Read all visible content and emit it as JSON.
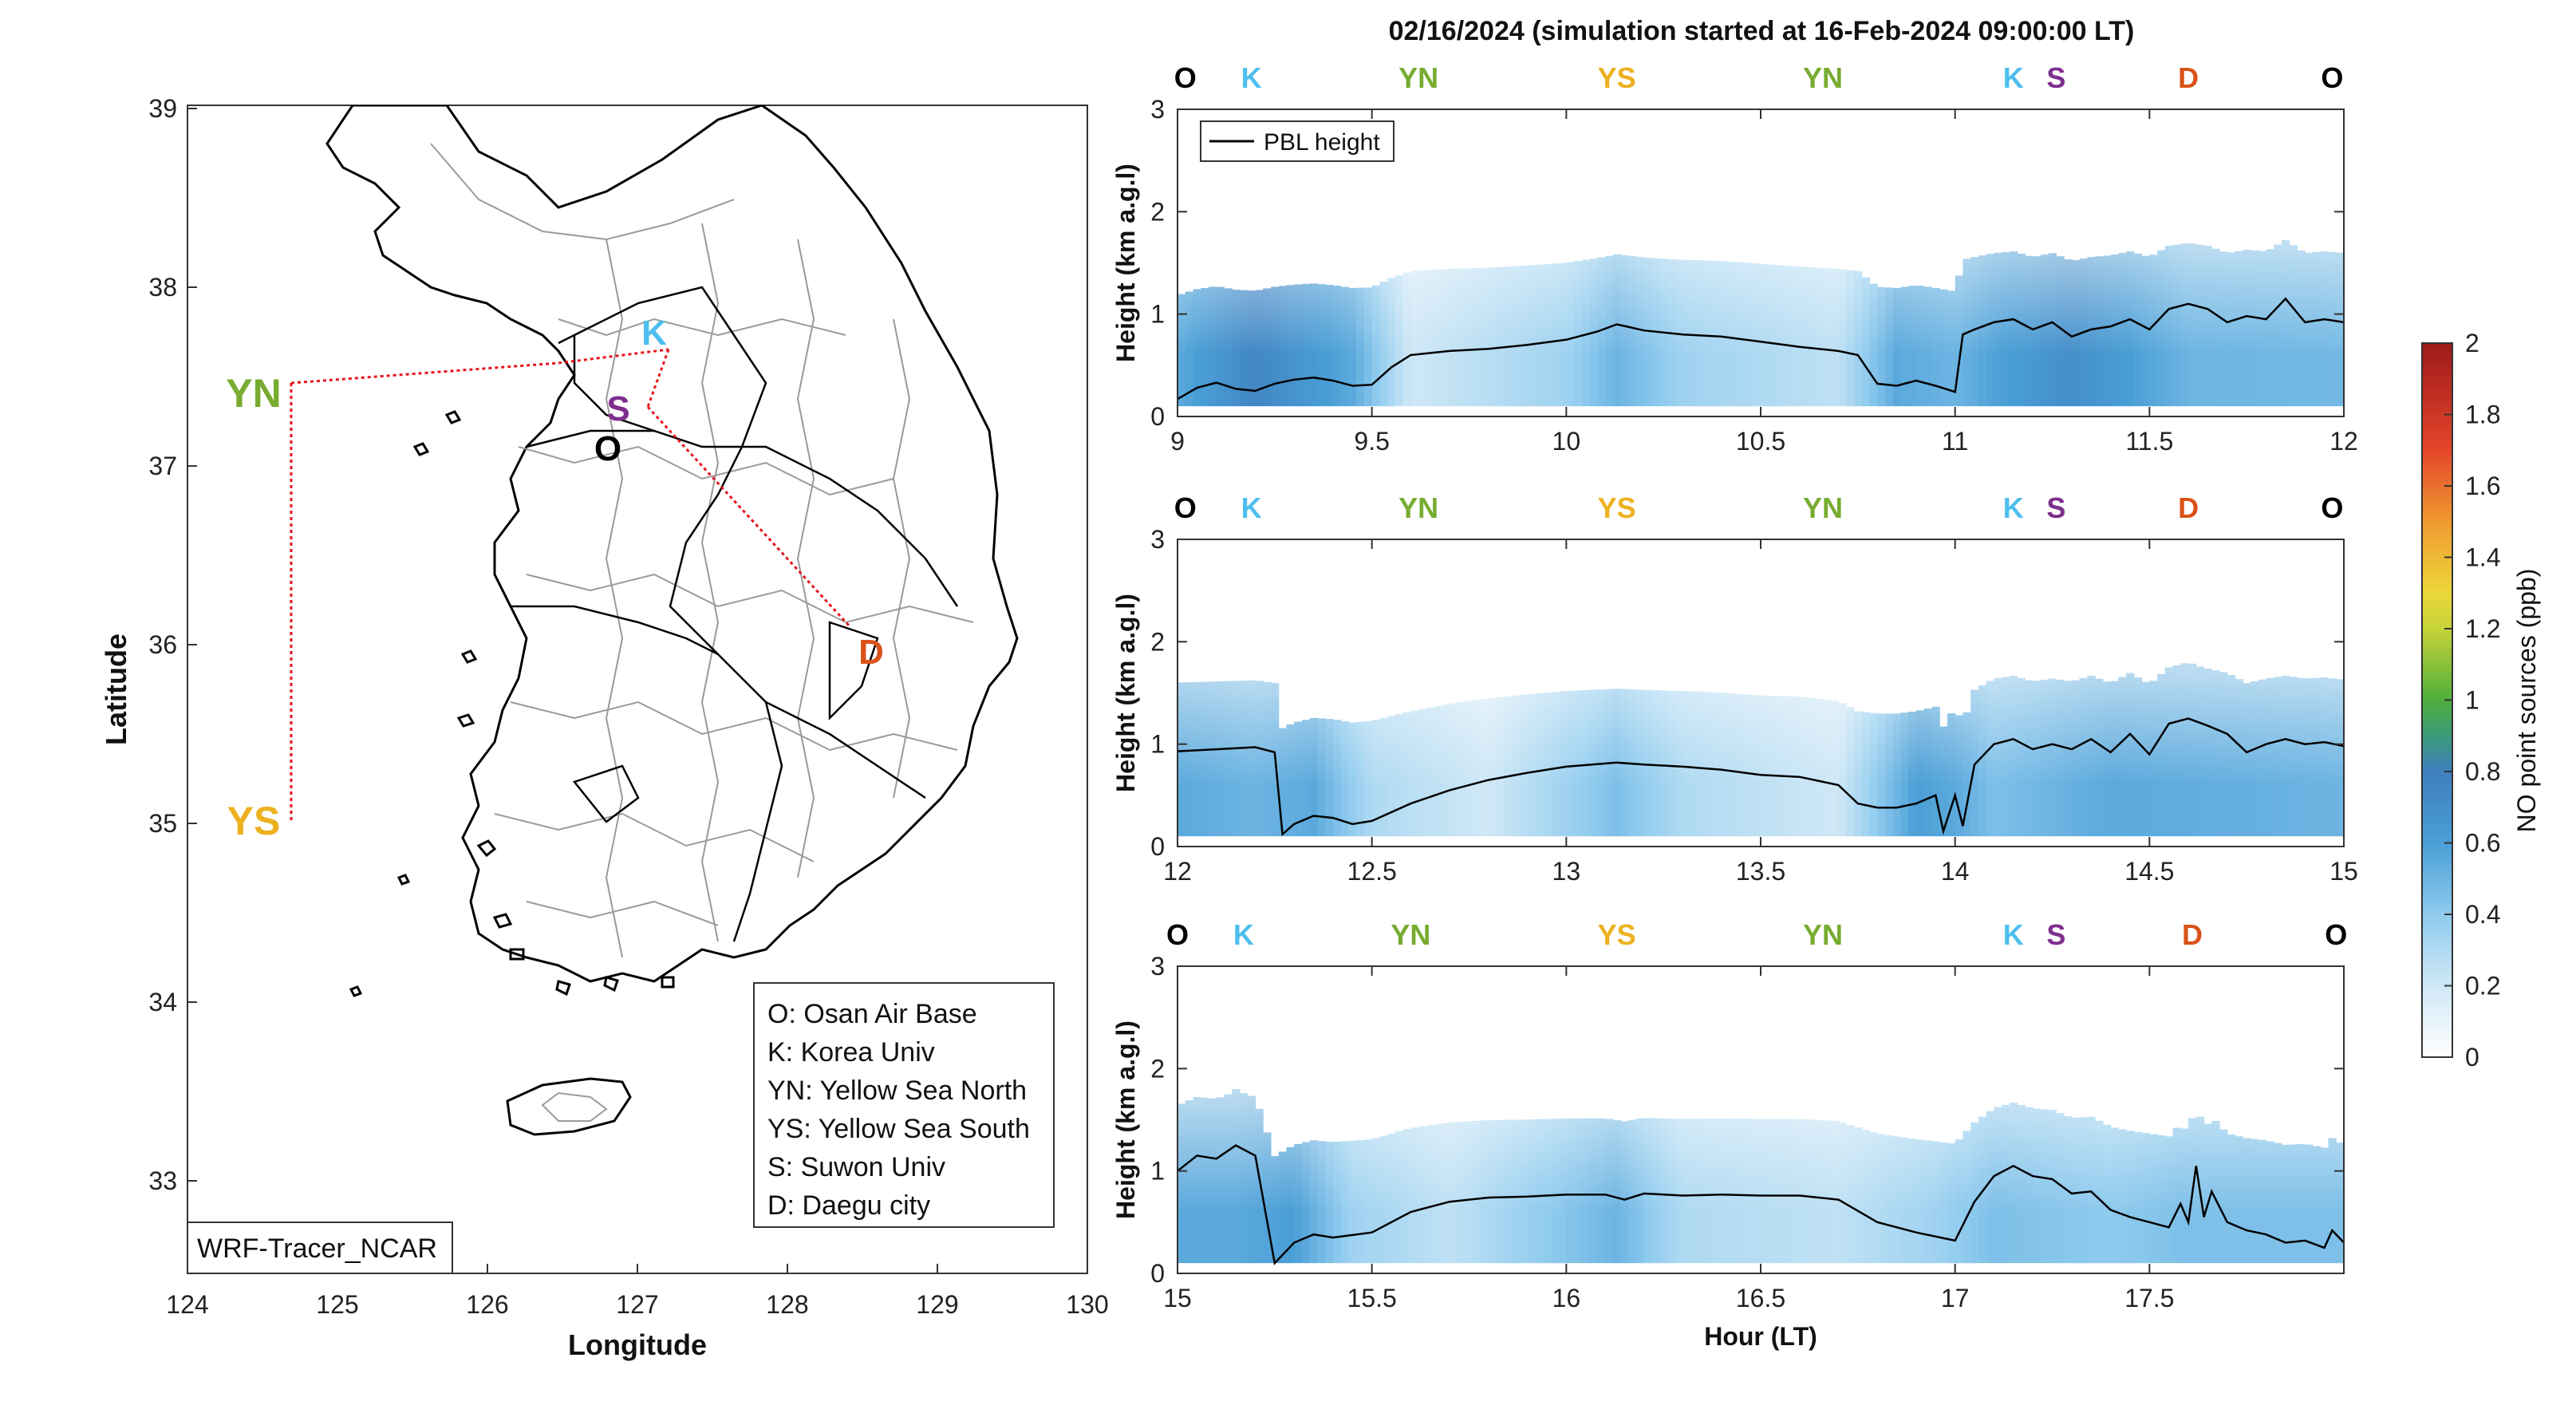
{
  "figure": {
    "title": "02/16/2024 (simulation started at 16-Feb-2024 09:00:00 LT)"
  },
  "map": {
    "xlabel": "Longitude",
    "ylabel": "Latitude",
    "xticks": [
      "124",
      "125",
      "126",
      "127",
      "128",
      "129",
      "130"
    ],
    "yticks": [
      "39",
      "38",
      "37",
      "36",
      "35",
      "34",
      "33"
    ],
    "watermark": "WRF-Tracer_NCAR",
    "sites": [
      {
        "code": "YN",
        "color": "#77AC30"
      },
      {
        "code": "YS",
        "color": "#EDB120"
      },
      {
        "code": "K",
        "color": "#4DBEEE"
      },
      {
        "code": "S",
        "color": "#7E2F8E"
      },
      {
        "code": "O",
        "color": "#000000"
      },
      {
        "code": "D",
        "color": "#D95319"
      }
    ],
    "legend": [
      "O: Osan Air Base",
      "K: Korea Univ",
      "YN: Yellow Sea North",
      "YS: Yellow Sea South",
      "S: Suwon Univ",
      "D: Daegu city"
    ]
  },
  "colorbar": {
    "label": "NO point sources (ppb)",
    "ticks": [
      "2",
      "1.8",
      "1.6",
      "1.4",
      "1.2",
      "1",
      "0.8",
      "0.6",
      "0.4",
      "0.2",
      "0"
    ]
  },
  "route_colors": {
    "O": "#000000",
    "K": "#4DBEEE",
    "YN": "#77AC30",
    "YS": "#EDB120",
    "S": "#7E2F8E",
    "D": "#D95319"
  },
  "chart_data": {
    "type": "heatmap",
    "variable": "NO point sources (ppb)",
    "clim": [
      0,
      2
    ],
    "ylabel": "Height (km a.g.l)",
    "xlabel": "Hour (LT)",
    "legend": "PBL height",
    "panels": [
      {
        "xlim": [
          9,
          12
        ],
        "ylim": [
          0,
          3
        ],
        "xticks": [
          "9",
          "9.5",
          "10",
          "10.5",
          "11",
          "11.5",
          "12"
        ],
        "yticks": [
          "3",
          "2",
          "1",
          "0"
        ],
        "route": [
          {
            "label": "O",
            "x": 9.02
          },
          {
            "label": "K",
            "x": 9.19
          },
          {
            "label": "YN",
            "x": 9.62
          },
          {
            "label": "YS",
            "x": 10.13
          },
          {
            "label": "YN",
            "x": 10.66
          },
          {
            "label": "K",
            "x": 11.15
          },
          {
            "label": "S",
            "x": 11.26
          },
          {
            "label": "D",
            "x": 11.6
          },
          {
            "label": "O",
            "x": 11.97
          }
        ],
        "pbl": [
          [
            9.0,
            0.17
          ],
          [
            9.05,
            0.28
          ],
          [
            9.1,
            0.33
          ],
          [
            9.15,
            0.27
          ],
          [
            9.2,
            0.25
          ],
          [
            9.25,
            0.32
          ],
          [
            9.3,
            0.36
          ],
          [
            9.35,
            0.38
          ],
          [
            9.4,
            0.35
          ],
          [
            9.45,
            0.3
          ],
          [
            9.5,
            0.31
          ],
          [
            9.55,
            0.48
          ],
          [
            9.6,
            0.6
          ],
          [
            9.7,
            0.64
          ],
          [
            9.8,
            0.66
          ],
          [
            9.9,
            0.7
          ],
          [
            10.0,
            0.75
          ],
          [
            10.08,
            0.83
          ],
          [
            10.13,
            0.9
          ],
          [
            10.2,
            0.84
          ],
          [
            10.3,
            0.8
          ],
          [
            10.4,
            0.78
          ],
          [
            10.5,
            0.73
          ],
          [
            10.6,
            0.68
          ],
          [
            10.7,
            0.64
          ],
          [
            10.75,
            0.6
          ],
          [
            10.8,
            0.32
          ],
          [
            10.85,
            0.3
          ],
          [
            10.9,
            0.35
          ],
          [
            10.95,
            0.3
          ],
          [
            11.0,
            0.24
          ],
          [
            11.02,
            0.8
          ],
          [
            11.05,
            0.85
          ],
          [
            11.1,
            0.92
          ],
          [
            11.15,
            0.95
          ],
          [
            11.2,
            0.85
          ],
          [
            11.25,
            0.92
          ],
          [
            11.3,
            0.78
          ],
          [
            11.35,
            0.85
          ],
          [
            11.4,
            0.88
          ],
          [
            11.45,
            0.95
          ],
          [
            11.5,
            0.85
          ],
          [
            11.55,
            1.05
          ],
          [
            11.6,
            1.1
          ],
          [
            11.65,
            1.05
          ],
          [
            11.7,
            0.92
          ],
          [
            11.75,
            0.98
          ],
          [
            11.8,
            0.95
          ],
          [
            11.85,
            1.15
          ],
          [
            11.9,
            0.92
          ],
          [
            11.95,
            0.95
          ],
          [
            12.0,
            0.92
          ]
        ],
        "no_levels": [
          [
            9.0,
            0.55
          ],
          [
            9.2,
            0.75
          ],
          [
            9.45,
            0.55
          ],
          [
            9.6,
            0.2
          ],
          [
            10.0,
            0.35
          ],
          [
            10.13,
            0.5
          ],
          [
            10.3,
            0.35
          ],
          [
            10.7,
            0.25
          ],
          [
            10.85,
            0.55
          ],
          [
            11.0,
            0.5
          ],
          [
            11.1,
            0.58
          ],
          [
            11.3,
            0.7
          ],
          [
            11.6,
            0.5
          ],
          [
            12.0,
            0.48
          ]
        ]
      },
      {
        "xlim": [
          12,
          15
        ],
        "ylim": [
          0,
          3
        ],
        "xticks": [
          "12",
          "12.5",
          "13",
          "13.5",
          "14",
          "14.5",
          "15"
        ],
        "yticks": [
          "3",
          "2",
          "1",
          "0"
        ],
        "route": [
          {
            "label": "O",
            "x": 12.02
          },
          {
            "label": "K",
            "x": 12.19
          },
          {
            "label": "YN",
            "x": 12.62
          },
          {
            "label": "YS",
            "x": 13.13
          },
          {
            "label": "YN",
            "x": 13.66
          },
          {
            "label": "K",
            "x": 14.15
          },
          {
            "label": "S",
            "x": 14.26
          },
          {
            "label": "D",
            "x": 14.6
          },
          {
            "label": "O",
            "x": 14.97
          }
        ],
        "pbl": [
          [
            12.0,
            0.93
          ],
          [
            12.1,
            0.95
          ],
          [
            12.2,
            0.97
          ],
          [
            12.25,
            0.92
          ],
          [
            12.27,
            0.12
          ],
          [
            12.3,
            0.22
          ],
          [
            12.35,
            0.3
          ],
          [
            12.4,
            0.28
          ],
          [
            12.45,
            0.22
          ],
          [
            12.5,
            0.25
          ],
          [
            12.6,
            0.42
          ],
          [
            12.7,
            0.55
          ],
          [
            12.8,
            0.65
          ],
          [
            12.9,
            0.72
          ],
          [
            13.0,
            0.78
          ],
          [
            13.13,
            0.82
          ],
          [
            13.2,
            0.8
          ],
          [
            13.3,
            0.78
          ],
          [
            13.4,
            0.75
          ],
          [
            13.5,
            0.7
          ],
          [
            13.6,
            0.68
          ],
          [
            13.7,
            0.6
          ],
          [
            13.75,
            0.42
          ],
          [
            13.8,
            0.38
          ],
          [
            13.85,
            0.38
          ],
          [
            13.9,
            0.42
          ],
          [
            13.95,
            0.5
          ],
          [
            13.97,
            0.15
          ],
          [
            14.0,
            0.5
          ],
          [
            14.02,
            0.2
          ],
          [
            14.05,
            0.8
          ],
          [
            14.1,
            1.0
          ],
          [
            14.15,
            1.05
          ],
          [
            14.2,
            0.95
          ],
          [
            14.25,
            1.0
          ],
          [
            14.3,
            0.95
          ],
          [
            14.35,
            1.05
          ],
          [
            14.4,
            0.92
          ],
          [
            14.45,
            1.1
          ],
          [
            14.5,
            0.9
          ],
          [
            14.55,
            1.2
          ],
          [
            14.6,
            1.25
          ],
          [
            14.65,
            1.18
          ],
          [
            14.7,
            1.1
          ],
          [
            14.75,
            0.92
          ],
          [
            14.8,
            1.0
          ],
          [
            14.85,
            1.05
          ],
          [
            14.9,
            1.0
          ],
          [
            14.95,
            1.02
          ],
          [
            15.0,
            0.98
          ]
        ],
        "no_levels": [
          [
            12.0,
            0.55
          ],
          [
            12.2,
            0.5
          ],
          [
            12.35,
            0.55
          ],
          [
            12.5,
            0.3
          ],
          [
            12.8,
            0.2
          ],
          [
            13.13,
            0.45
          ],
          [
            13.3,
            0.3
          ],
          [
            13.7,
            0.2
          ],
          [
            13.9,
            0.6
          ],
          [
            14.0,
            0.55
          ],
          [
            14.1,
            0.45
          ],
          [
            14.4,
            0.55
          ],
          [
            15.0,
            0.5
          ]
        ]
      },
      {
        "xlim": [
          15,
          18
        ],
        "ylim": [
          0,
          3
        ],
        "xticks": [
          "15",
          "15.5",
          "16",
          "16.5",
          "17",
          "17.5"
        ],
        "yticks": [
          "3",
          "2",
          "1",
          "0"
        ],
        "route": [
          {
            "label": "O",
            "x": 15.0
          },
          {
            "label": "K",
            "x": 15.17
          },
          {
            "label": "YN",
            "x": 15.6
          },
          {
            "label": "YS",
            "x": 16.13
          },
          {
            "label": "YN",
            "x": 16.66
          },
          {
            "label": "K",
            "x": 17.15
          },
          {
            "label": "S",
            "x": 17.26
          },
          {
            "label": "D",
            "x": 17.61
          },
          {
            "label": "O",
            "x": 17.98
          }
        ],
        "pbl": [
          [
            15.0,
            1.0
          ],
          [
            15.05,
            1.15
          ],
          [
            15.1,
            1.12
          ],
          [
            15.15,
            1.25
          ],
          [
            15.2,
            1.15
          ],
          [
            15.25,
            0.1
          ],
          [
            15.3,
            0.3
          ],
          [
            15.35,
            0.38
          ],
          [
            15.4,
            0.35
          ],
          [
            15.5,
            0.4
          ],
          [
            15.6,
            0.6
          ],
          [
            15.7,
            0.7
          ],
          [
            15.8,
            0.74
          ],
          [
            15.9,
            0.75
          ],
          [
            16.0,
            0.77
          ],
          [
            16.1,
            0.77
          ],
          [
            16.15,
            0.72
          ],
          [
            16.2,
            0.78
          ],
          [
            16.3,
            0.76
          ],
          [
            16.4,
            0.77
          ],
          [
            16.5,
            0.76
          ],
          [
            16.6,
            0.76
          ],
          [
            16.7,
            0.72
          ],
          [
            16.8,
            0.5
          ],
          [
            16.9,
            0.4
          ],
          [
            17.0,
            0.32
          ],
          [
            17.05,
            0.7
          ],
          [
            17.1,
            0.95
          ],
          [
            17.15,
            1.05
          ],
          [
            17.2,
            0.95
          ],
          [
            17.25,
            0.92
          ],
          [
            17.3,
            0.78
          ],
          [
            17.35,
            0.8
          ],
          [
            17.4,
            0.62
          ],
          [
            17.45,
            0.55
          ],
          [
            17.5,
            0.5
          ],
          [
            17.55,
            0.45
          ],
          [
            17.58,
            0.68
          ],
          [
            17.6,
            0.5
          ],
          [
            17.62,
            1.05
          ],
          [
            17.64,
            0.55
          ],
          [
            17.66,
            0.8
          ],
          [
            17.7,
            0.5
          ],
          [
            17.75,
            0.42
          ],
          [
            17.8,
            0.38
          ],
          [
            17.85,
            0.3
          ],
          [
            17.9,
            0.32
          ],
          [
            17.95,
            0.25
          ],
          [
            17.97,
            0.42
          ],
          [
            18.0,
            0.3
          ]
        ],
        "no_levels": [
          [
            15.0,
            0.55
          ],
          [
            15.15,
            0.55
          ],
          [
            15.3,
            0.6
          ],
          [
            15.45,
            0.35
          ],
          [
            15.7,
            0.25
          ],
          [
            16.13,
            0.5
          ],
          [
            16.3,
            0.3
          ],
          [
            16.7,
            0.25
          ],
          [
            16.95,
            0.35
          ],
          [
            17.1,
            0.45
          ],
          [
            17.4,
            0.4
          ],
          [
            17.6,
            0.45
          ],
          [
            18.0,
            0.45
          ]
        ]
      }
    ]
  }
}
